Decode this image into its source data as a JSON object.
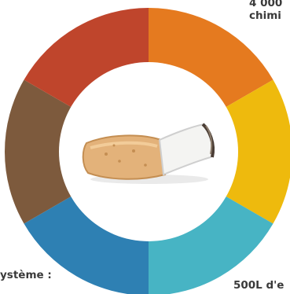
{
  "infographic": {
    "labels": {
      "top_right": "4 000\nchimi",
      "bottom_left": "ystème :",
      "bottom_right": "500L d'e"
    },
    "segments": [
      {
        "color": "#e57a1f"
      },
      {
        "color": "#eeba0d"
      },
      {
        "color": "#47b4c4"
      },
      {
        "color": "#2e80b3"
      },
      {
        "color": "#7d5a3d"
      },
      {
        "color": "#bf452c"
      }
    ],
    "center_icon": "cigarette-butt-icon"
  }
}
